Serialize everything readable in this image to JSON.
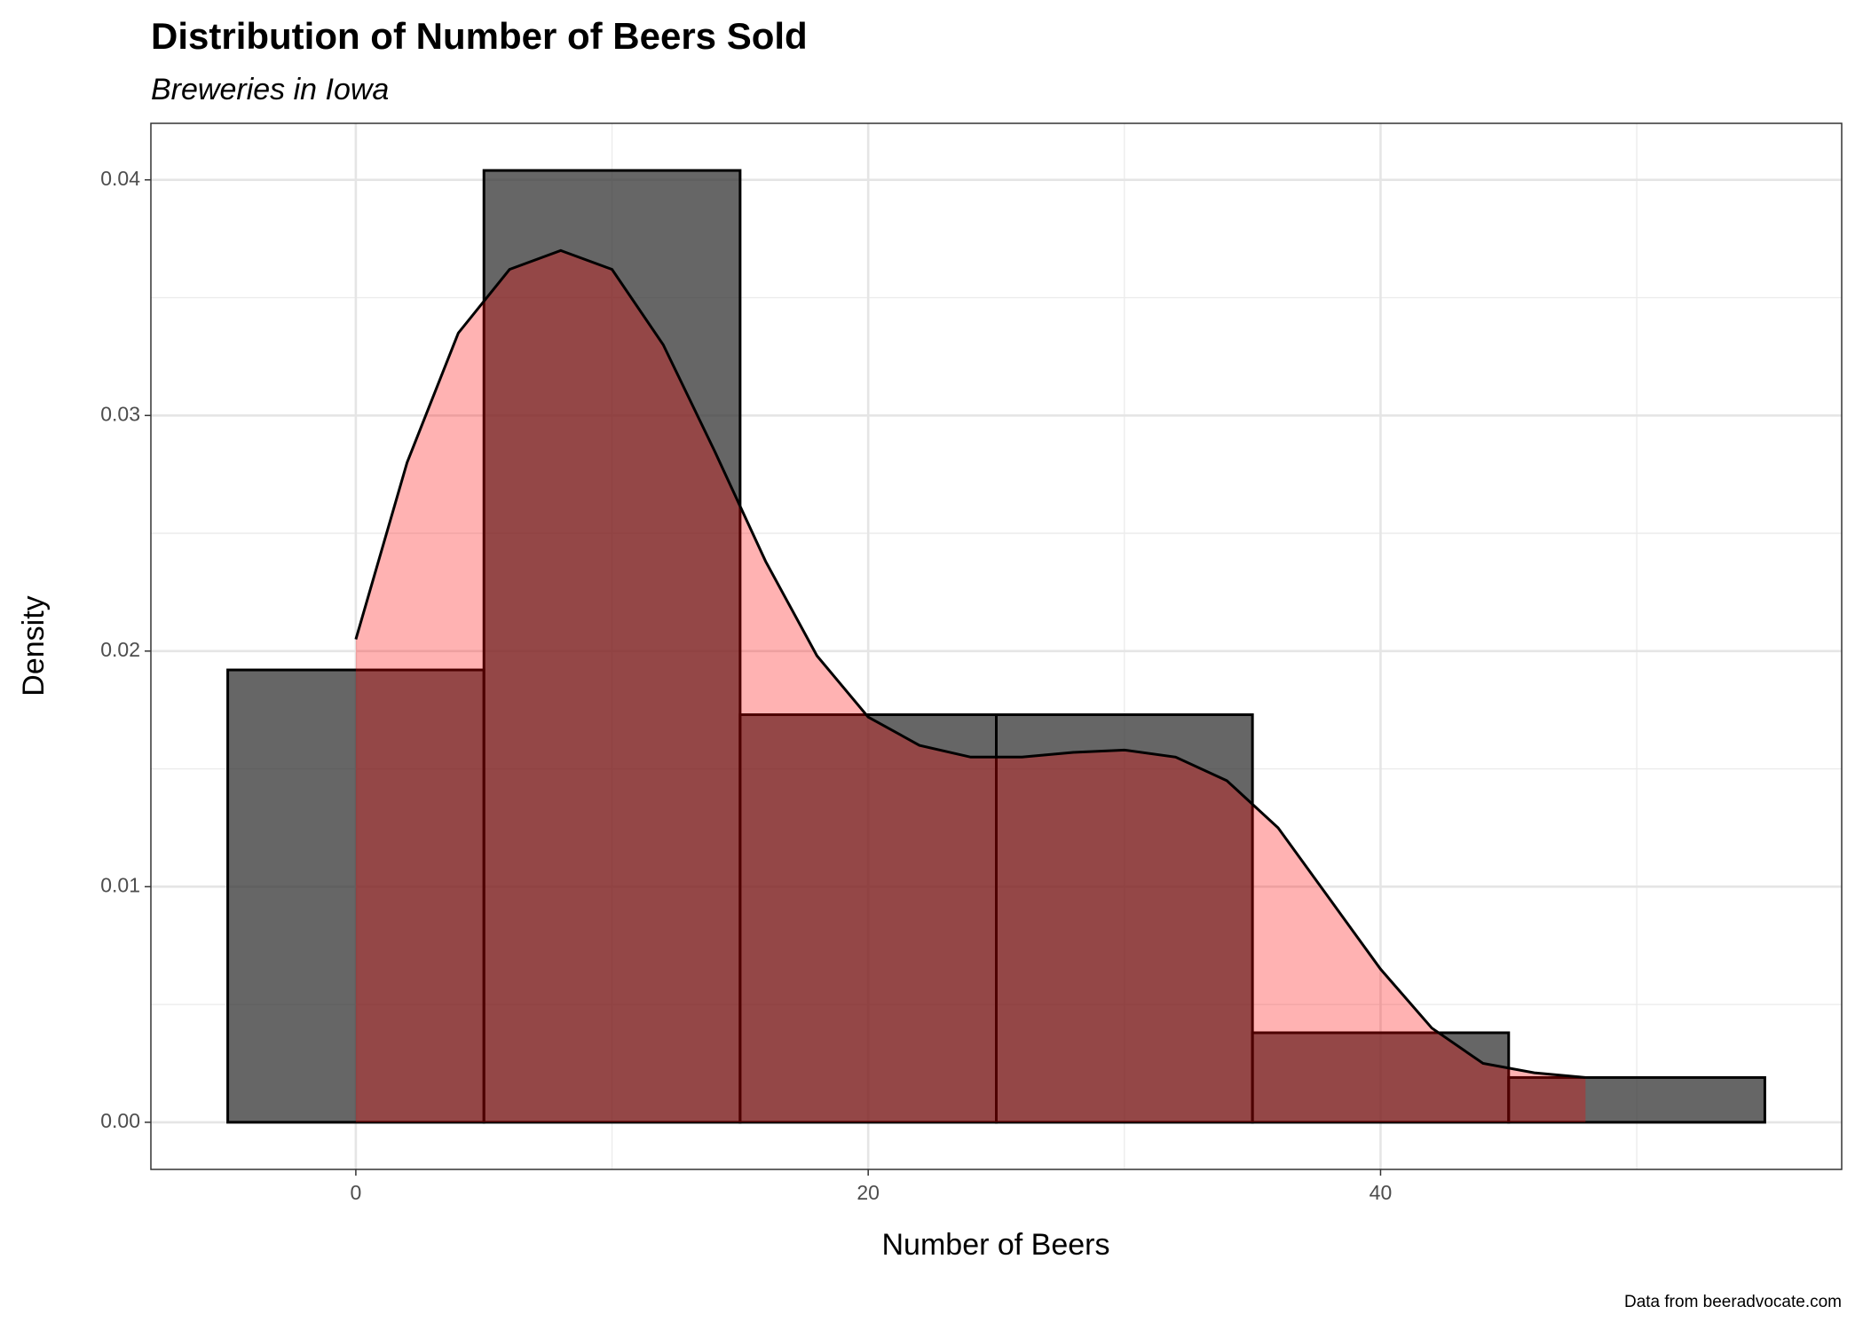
{
  "chart_data": {
    "type": "histogram",
    "title": "Distribution of Number of Beers Sold",
    "subtitle": "Breweries in Iowa",
    "x_label": "Number of Beers",
    "y_label": "Density",
    "caption": "Data from beeradvocate.com",
    "bins": [
      -5,
      5,
      15,
      25,
      35,
      45,
      55
    ],
    "values": [
      0.0192,
      0.0404,
      0.0173,
      0.0173,
      0.0038,
      0.0019
    ],
    "color": "#333333",
    "overlay": {
      "type": "area",
      "color": "#ff0000",
      "x": [
        0,
        2,
        4,
        6,
        8,
        10,
        12,
        14,
        16,
        18,
        20,
        22,
        24,
        26,
        28,
        30,
        32,
        34,
        36,
        38,
        40,
        42,
        44,
        46,
        48
      ],
      "values": [
        0.0205,
        0.028,
        0.0335,
        0.0362,
        0.037,
        0.0362,
        0.033,
        0.0285,
        0.0238,
        0.0198,
        0.0172,
        0.016,
        0.0155,
        0.0155,
        0.0157,
        0.0158,
        0.0155,
        0.0145,
        0.0125,
        0.0095,
        0.0065,
        0.004,
        0.0025,
        0.0021,
        0.0019
      ]
    },
    "xlim": [
      -8,
      58
    ],
    "ylim": [
      -0.002,
      0.0424
    ],
    "xticks": [
      0,
      20,
      40
    ],
    "yticks": [
      {
        "value": 0,
        "label": "0.00"
      },
      {
        "value": 0.01,
        "label": "0.01"
      },
      {
        "value": 0.02,
        "label": "0.02"
      },
      {
        "value": 0.03,
        "label": "0.03"
      },
      {
        "value": 0.04,
        "label": "0.04"
      }
    ],
    "grid": true
  }
}
